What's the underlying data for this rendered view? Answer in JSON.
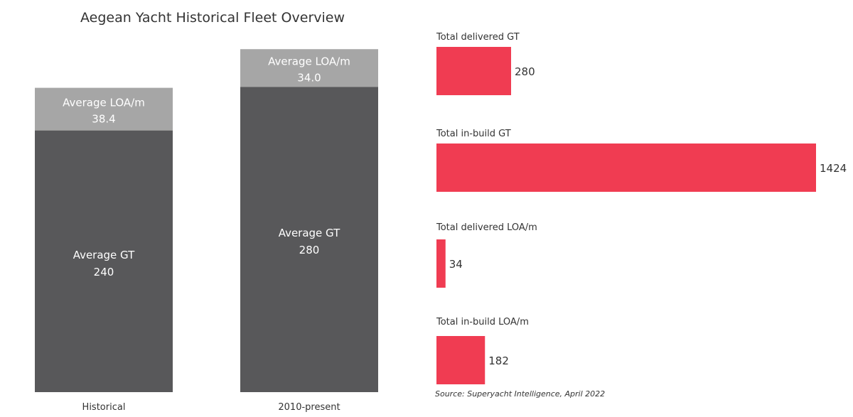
{
  "chart_data": [
    {
      "type": "bar",
      "stacked": true,
      "title": "Aegean Yacht Historical Fleet Overview",
      "categories": [
        "Historical",
        "2010-present"
      ],
      "series": [
        {
          "name": "Average GT",
          "values": [
            240,
            280
          ]
        },
        {
          "name": "Average LOA/m",
          "values": [
            38.4,
            34.0
          ]
        }
      ],
      "value_labels": {
        "Average GT": [
          "240",
          "280"
        ],
        "Average LOA/m": [
          "38.4",
          "34.0"
        ]
      },
      "colors": {
        "Average GT": "#58585a",
        "Average LOA/m": "#a6a6a6"
      },
      "grid": false,
      "legend": "none"
    },
    {
      "type": "bar",
      "orientation": "horizontal",
      "categories": [
        "Total delivered GT",
        "Total in-build GT",
        "Total delivered LOA/m",
        "Total in-build LOA/m"
      ],
      "values": [
        280,
        1424,
        34,
        182
      ],
      "color": "#f03c52",
      "grid": false,
      "legend": "none"
    }
  ],
  "source": "Source: Superyacht Intelligence, April 2022"
}
